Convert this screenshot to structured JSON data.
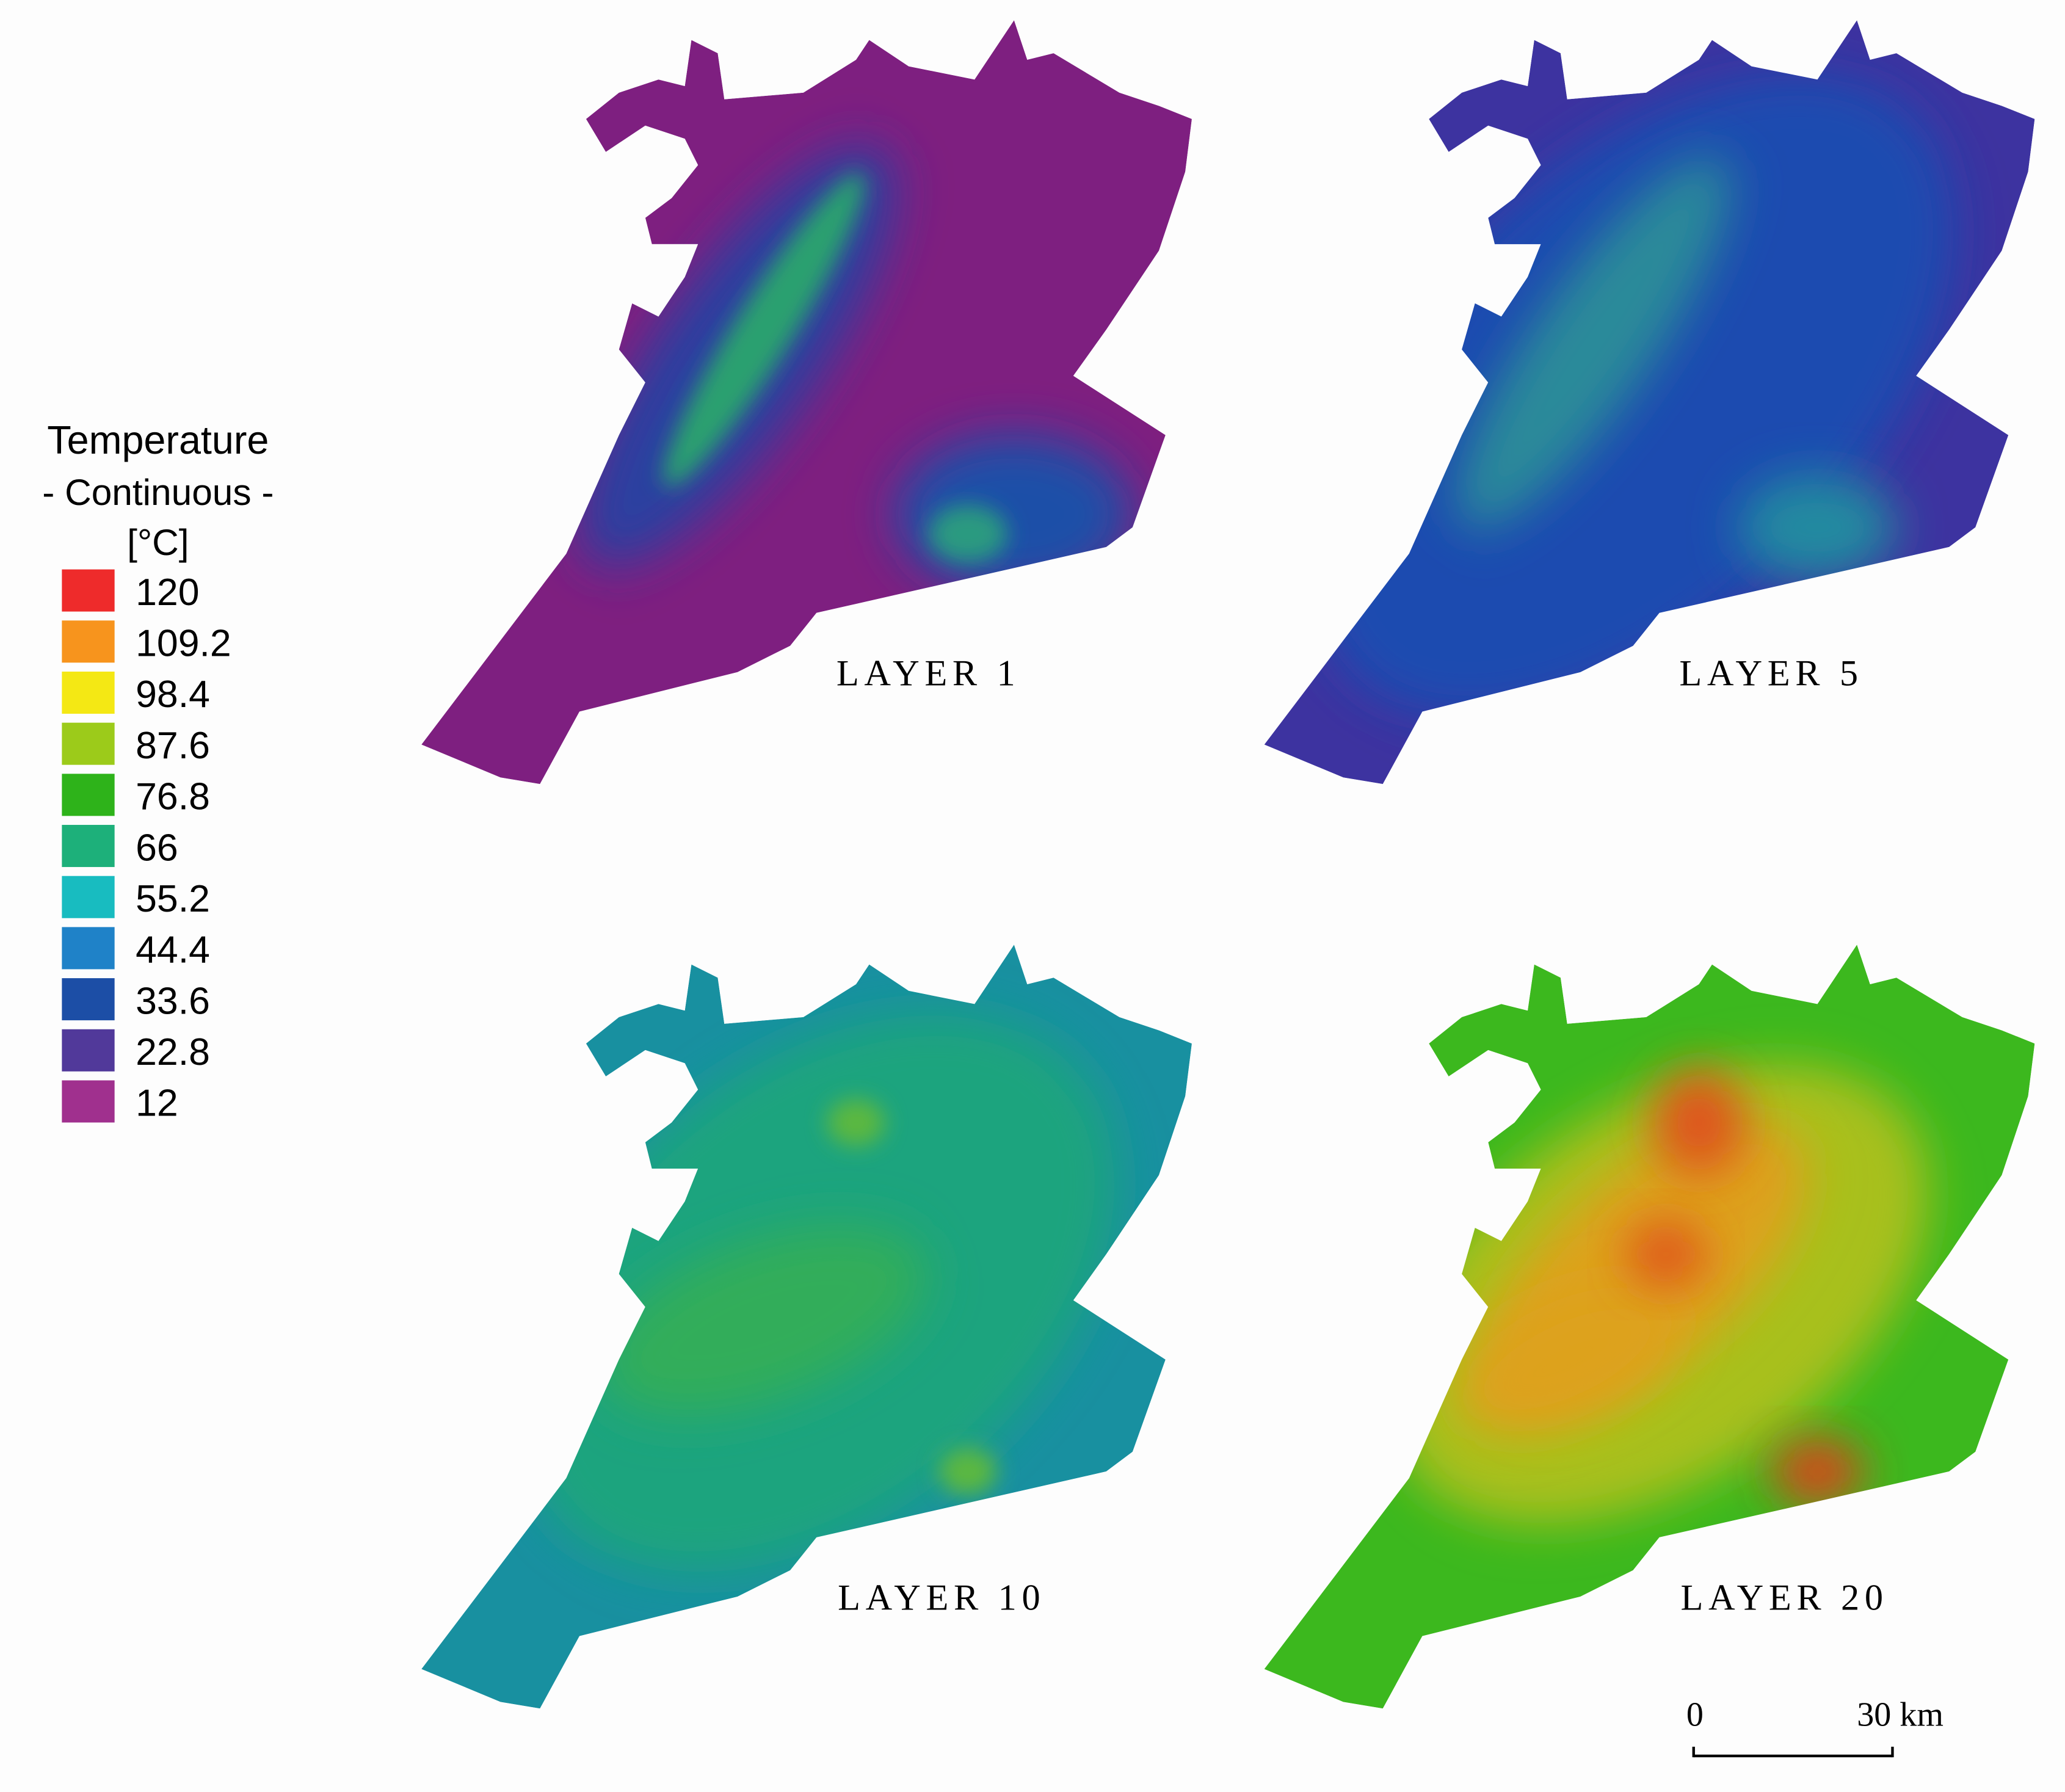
{
  "legend": {
    "title": "Temperature",
    "subtitle": "- Continuous -",
    "unit": "[°C]",
    "entries": [
      {
        "label": "120",
        "color": "#ee2b2b"
      },
      {
        "label": "109.2",
        "color": "#f7941d"
      },
      {
        "label": "98.4",
        "color": "#f4e814"
      },
      {
        "label": "87.6",
        "color": "#9ccb1a"
      },
      {
        "label": "76.8",
        "color": "#2eb31a"
      },
      {
        "label": "66",
        "color": "#1db07a"
      },
      {
        "label": "55.2",
        "color": "#18bcc0"
      },
      {
        "label": "44.4",
        "color": "#1f82c8"
      },
      {
        "label": "33.6",
        "color": "#1c4ea6"
      },
      {
        "label": "22.8",
        "color": "#51399a"
      },
      {
        "label": "12",
        "color": "#a0308e"
      }
    ]
  },
  "maps": [
    {
      "label": "LAYER 1"
    },
    {
      "label": "LAYER 5"
    },
    {
      "label": "LAYER 10"
    },
    {
      "label": "LAYER 20"
    }
  ],
  "scale_bar": {
    "start": "0",
    "end": "30 km"
  }
}
